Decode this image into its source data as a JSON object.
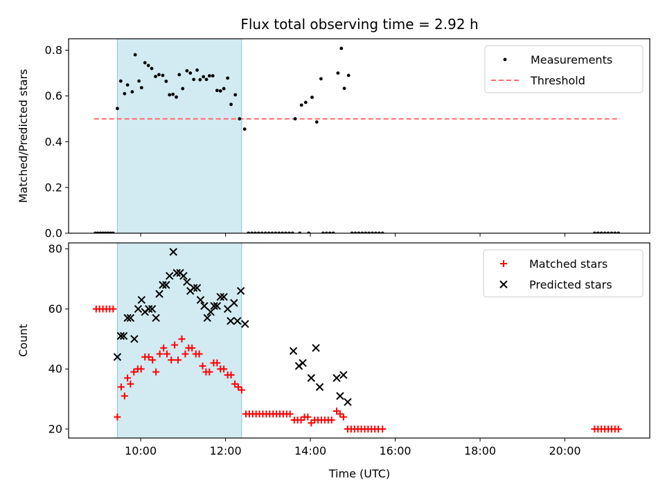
{
  "chart_data": {
    "title": "Flux total observing time = 2.92 h",
    "xlabel": "Time (UTC)",
    "xlim": [
      8.3,
      22.0
    ],
    "xticks": [
      {
        "value": 10,
        "label": "10:00"
      },
      {
        "value": 12,
        "label": "12:00"
      },
      {
        "value": 14,
        "label": "14:00"
      },
      {
        "value": 16,
        "label": "16:00"
      },
      {
        "value": 18,
        "label": "18:00"
      },
      {
        "value": 20,
        "label": "20:00"
      }
    ],
    "shaded_span": [
      9.45,
      12.38
    ],
    "shade_color": "#add8e6",
    "panels": [
      {
        "type": "scatter",
        "ylabel": "Matched/Predicted stars",
        "ylim": [
          0,
          0.85
        ],
        "yticks": [
          "0.0",
          "0.2",
          "0.4",
          "0.6",
          "0.8"
        ],
        "legend_position": "top-right",
        "threshold": {
          "name": "Threshold",
          "value": 0.5,
          "x": [
            8.9,
            21.3
          ],
          "color": "#ff6b6b"
        },
        "series": [
          {
            "name": "Measurements",
            "color": "#000000",
            "marker": "dot",
            "points": [
              [
                8.93,
                0
              ],
              [
                8.99,
                0
              ],
              [
                9.05,
                0
              ],
              [
                9.11,
                0
              ],
              [
                9.17,
                0
              ],
              [
                9.23,
                0
              ],
              [
                9.29,
                0
              ],
              [
                9.35,
                0
              ],
              [
                9.45,
                0.545
              ],
              [
                9.53,
                0.665
              ],
              [
                9.62,
                0.61
              ],
              [
                9.69,
                0.648
              ],
              [
                9.8,
                0.618
              ],
              [
                9.87,
                0.78
              ],
              [
                9.96,
                0.665
              ],
              [
                10.02,
                0.636
              ],
              [
                10.1,
                0.745
              ],
              [
                10.18,
                0.733
              ],
              [
                10.26,
                0.72
              ],
              [
                10.35,
                0.685
              ],
              [
                10.43,
                0.693
              ],
              [
                10.52,
                0.69
              ],
              [
                10.6,
                0.664
              ],
              [
                10.68,
                0.605
              ],
              [
                10.76,
                0.607
              ],
              [
                10.84,
                0.595
              ],
              [
                10.91,
                0.693
              ],
              [
                10.99,
                0.632
              ],
              [
                11.09,
                0.71
              ],
              [
                11.17,
                0.7
              ],
              [
                11.25,
                0.672
              ],
              [
                11.33,
                0.713
              ],
              [
                11.4,
                0.671
              ],
              [
                11.48,
                0.684
              ],
              [
                11.55,
                0.672
              ],
              [
                11.62,
                0.688
              ],
              [
                11.7,
                0.688
              ],
              [
                11.8,
                0.624
              ],
              [
                11.88,
                0.622
              ],
              [
                11.96,
                0.632
              ],
              [
                12.05,
                0.678
              ],
              [
                12.13,
                0.563
              ],
              [
                12.23,
                0.605
              ],
              [
                12.33,
                0.5
              ],
              [
                12.45,
                0.455
              ],
              [
                12.54,
                0
              ],
              [
                12.62,
                0
              ],
              [
                12.7,
                0
              ],
              [
                12.78,
                0
              ],
              [
                12.86,
                0
              ],
              [
                12.94,
                0
              ],
              [
                13.02,
                0
              ],
              [
                13.1,
                0
              ],
              [
                13.18,
                0
              ],
              [
                13.26,
                0
              ],
              [
                13.34,
                0
              ],
              [
                13.42,
                0
              ],
              [
                13.5,
                0
              ],
              [
                13.58,
                0
              ],
              [
                13.75,
                0
              ],
              [
                13.96,
                0
              ],
              [
                13.64,
                0.5
              ],
              [
                13.79,
                0.56
              ],
              [
                13.89,
                0.572
              ],
              [
                14.04,
                0.594
              ],
              [
                14.15,
                0.486
              ],
              [
                14.25,
                0.675
              ],
              [
                14.3,
                0
              ],
              [
                14.38,
                0
              ],
              [
                14.46,
                0
              ],
              [
                14.54,
                0
              ],
              [
                14.65,
                0.7
              ],
              [
                14.73,
                0.808
              ],
              [
                14.8,
                0.633
              ],
              [
                14.9,
                0.69
              ],
              [
                14.98,
                0
              ],
              [
                15.06,
                0
              ],
              [
                15.14,
                0
              ],
              [
                15.22,
                0
              ],
              [
                15.3,
                0
              ],
              [
                15.38,
                0
              ],
              [
                15.46,
                0
              ],
              [
                15.54,
                0
              ],
              [
                15.62,
                0
              ],
              [
                15.7,
                0
              ],
              [
                20.7,
                0
              ],
              [
                20.78,
                0
              ],
              [
                20.86,
                0
              ],
              [
                20.94,
                0
              ],
              [
                21.02,
                0
              ],
              [
                21.1,
                0
              ],
              [
                21.18,
                0
              ],
              [
                21.26,
                0
              ]
            ]
          }
        ]
      },
      {
        "type": "scatter",
        "ylabel": "Count",
        "ylim": [
          17,
          82
        ],
        "yticks": [
          "20",
          "40",
          "60",
          "80"
        ],
        "legend_position": "top-right",
        "series": [
          {
            "name": "Matched stars",
            "color": "#ff0000",
            "marker": "plus",
            "points": [
              [
                8.95,
                60
              ],
              [
                9.03,
                60
              ],
              [
                9.11,
                60
              ],
              [
                9.19,
                60
              ],
              [
                9.27,
                60
              ],
              [
                9.35,
                60
              ],
              [
                9.45,
                24
              ],
              [
                9.54,
                34
              ],
              [
                9.62,
                31
              ],
              [
                9.69,
                37
              ],
              [
                9.76,
                35
              ],
              [
                9.84,
                39
              ],
              [
                9.93,
                40
              ],
              [
                10.01,
                40
              ],
              [
                10.1,
                44
              ],
              [
                10.19,
                44
              ],
              [
                10.28,
                43
              ],
              [
                10.36,
                39
              ],
              [
                10.45,
                45
              ],
              [
                10.54,
                47
              ],
              [
                10.62,
                45
              ],
              [
                10.72,
                43
              ],
              [
                10.8,
                48
              ],
              [
                10.88,
                43
              ],
              [
                10.97,
                50
              ],
              [
                11.05,
                45
              ],
              [
                11.13,
                47
              ],
              [
                11.21,
                47
              ],
              [
                11.3,
                45
              ],
              [
                11.38,
                45
              ],
              [
                11.46,
                41
              ],
              [
                11.54,
                39
              ],
              [
                11.62,
                39
              ],
              [
                11.72,
                42
              ],
              [
                11.8,
                42
              ],
              [
                11.88,
                40
              ],
              [
                11.96,
                40
              ],
              [
                12.05,
                38
              ],
              [
                12.13,
                38
              ],
              [
                12.22,
                35
              ],
              [
                12.3,
                34
              ],
              [
                12.38,
                33
              ],
              [
                12.48,
                25
              ],
              [
                12.56,
                25
              ],
              [
                12.64,
                25
              ],
              [
                12.72,
                25
              ],
              [
                12.8,
                25
              ],
              [
                12.88,
                25
              ],
              [
                12.96,
                25
              ],
              [
                13.04,
                25
              ],
              [
                13.12,
                25
              ],
              [
                13.2,
                25
              ],
              [
                13.28,
                25
              ],
              [
                13.36,
                25
              ],
              [
                13.44,
                25
              ],
              [
                13.52,
                25
              ],
              [
                13.62,
                23
              ],
              [
                13.7,
                23
              ],
              [
                13.78,
                23
              ],
              [
                13.86,
                24
              ],
              [
                13.94,
                24
              ],
              [
                14.02,
                22
              ],
              [
                14.1,
                23
              ],
              [
                14.18,
                23
              ],
              [
                14.26,
                23
              ],
              [
                14.34,
                23
              ],
              [
                14.42,
                23
              ],
              [
                14.5,
                23
              ],
              [
                14.62,
                26
              ],
              [
                14.7,
                25
              ],
              [
                14.78,
                24
              ],
              [
                14.88,
                20
              ],
              [
                14.96,
                20
              ],
              [
                15.04,
                20
              ],
              [
                15.12,
                20
              ],
              [
                15.2,
                20
              ],
              [
                15.28,
                20
              ],
              [
                15.36,
                20
              ],
              [
                15.44,
                20
              ],
              [
                15.52,
                20
              ],
              [
                15.6,
                20
              ],
              [
                15.7,
                20
              ],
              [
                20.7,
                20
              ],
              [
                20.78,
                20
              ],
              [
                20.86,
                20
              ],
              [
                20.94,
                20
              ],
              [
                21.02,
                20
              ],
              [
                21.1,
                20
              ],
              [
                21.18,
                20
              ],
              [
                21.26,
                20
              ]
            ]
          },
          {
            "name": "Predicted stars",
            "color": "#000000",
            "marker": "cross",
            "points": [
              [
                9.45,
                44
              ],
              [
                9.53,
                51
              ],
              [
                9.6,
                51
              ],
              [
                9.69,
                57
              ],
              [
                9.76,
                57
              ],
              [
                9.85,
                50
              ],
              [
                9.94,
                60
              ],
              [
                10.02,
                63
              ],
              [
                10.1,
                59
              ],
              [
                10.19,
                60
              ],
              [
                10.27,
                60
              ],
              [
                10.36,
                57
              ],
              [
                10.44,
                65
              ],
              [
                10.52,
                68
              ],
              [
                10.6,
                68
              ],
              [
                10.68,
                71
              ],
              [
                10.77,
                79
              ],
              [
                10.85,
                72
              ],
              [
                10.93,
                72
              ],
              [
                11.01,
                71
              ],
              [
                11.09,
                69
              ],
              [
                11.17,
                66
              ],
              [
                11.25,
                67
              ],
              [
                11.33,
                67
              ],
              [
                11.41,
                63
              ],
              [
                11.5,
                61
              ],
              [
                11.57,
                57
              ],
              [
                11.65,
                59
              ],
              [
                11.73,
                61
              ],
              [
                11.8,
                61
              ],
              [
                11.88,
                64
              ],
              [
                11.96,
                64
              ],
              [
                12.05,
                60
              ],
              [
                12.12,
                56
              ],
              [
                12.2,
                62
              ],
              [
                12.28,
                56
              ],
              [
                12.36,
                66
              ],
              [
                12.46,
                55
              ],
              [
                13.6,
                46
              ],
              [
                13.73,
                41
              ],
              [
                13.82,
                42
              ],
              [
                14.02,
                37
              ],
              [
                14.13,
                47
              ],
              [
                14.22,
                34
              ],
              [
                14.62,
                37
              ],
              [
                14.7,
                31
              ],
              [
                14.78,
                38
              ],
              [
                14.88,
                29
              ]
            ]
          }
        ]
      }
    ]
  }
}
